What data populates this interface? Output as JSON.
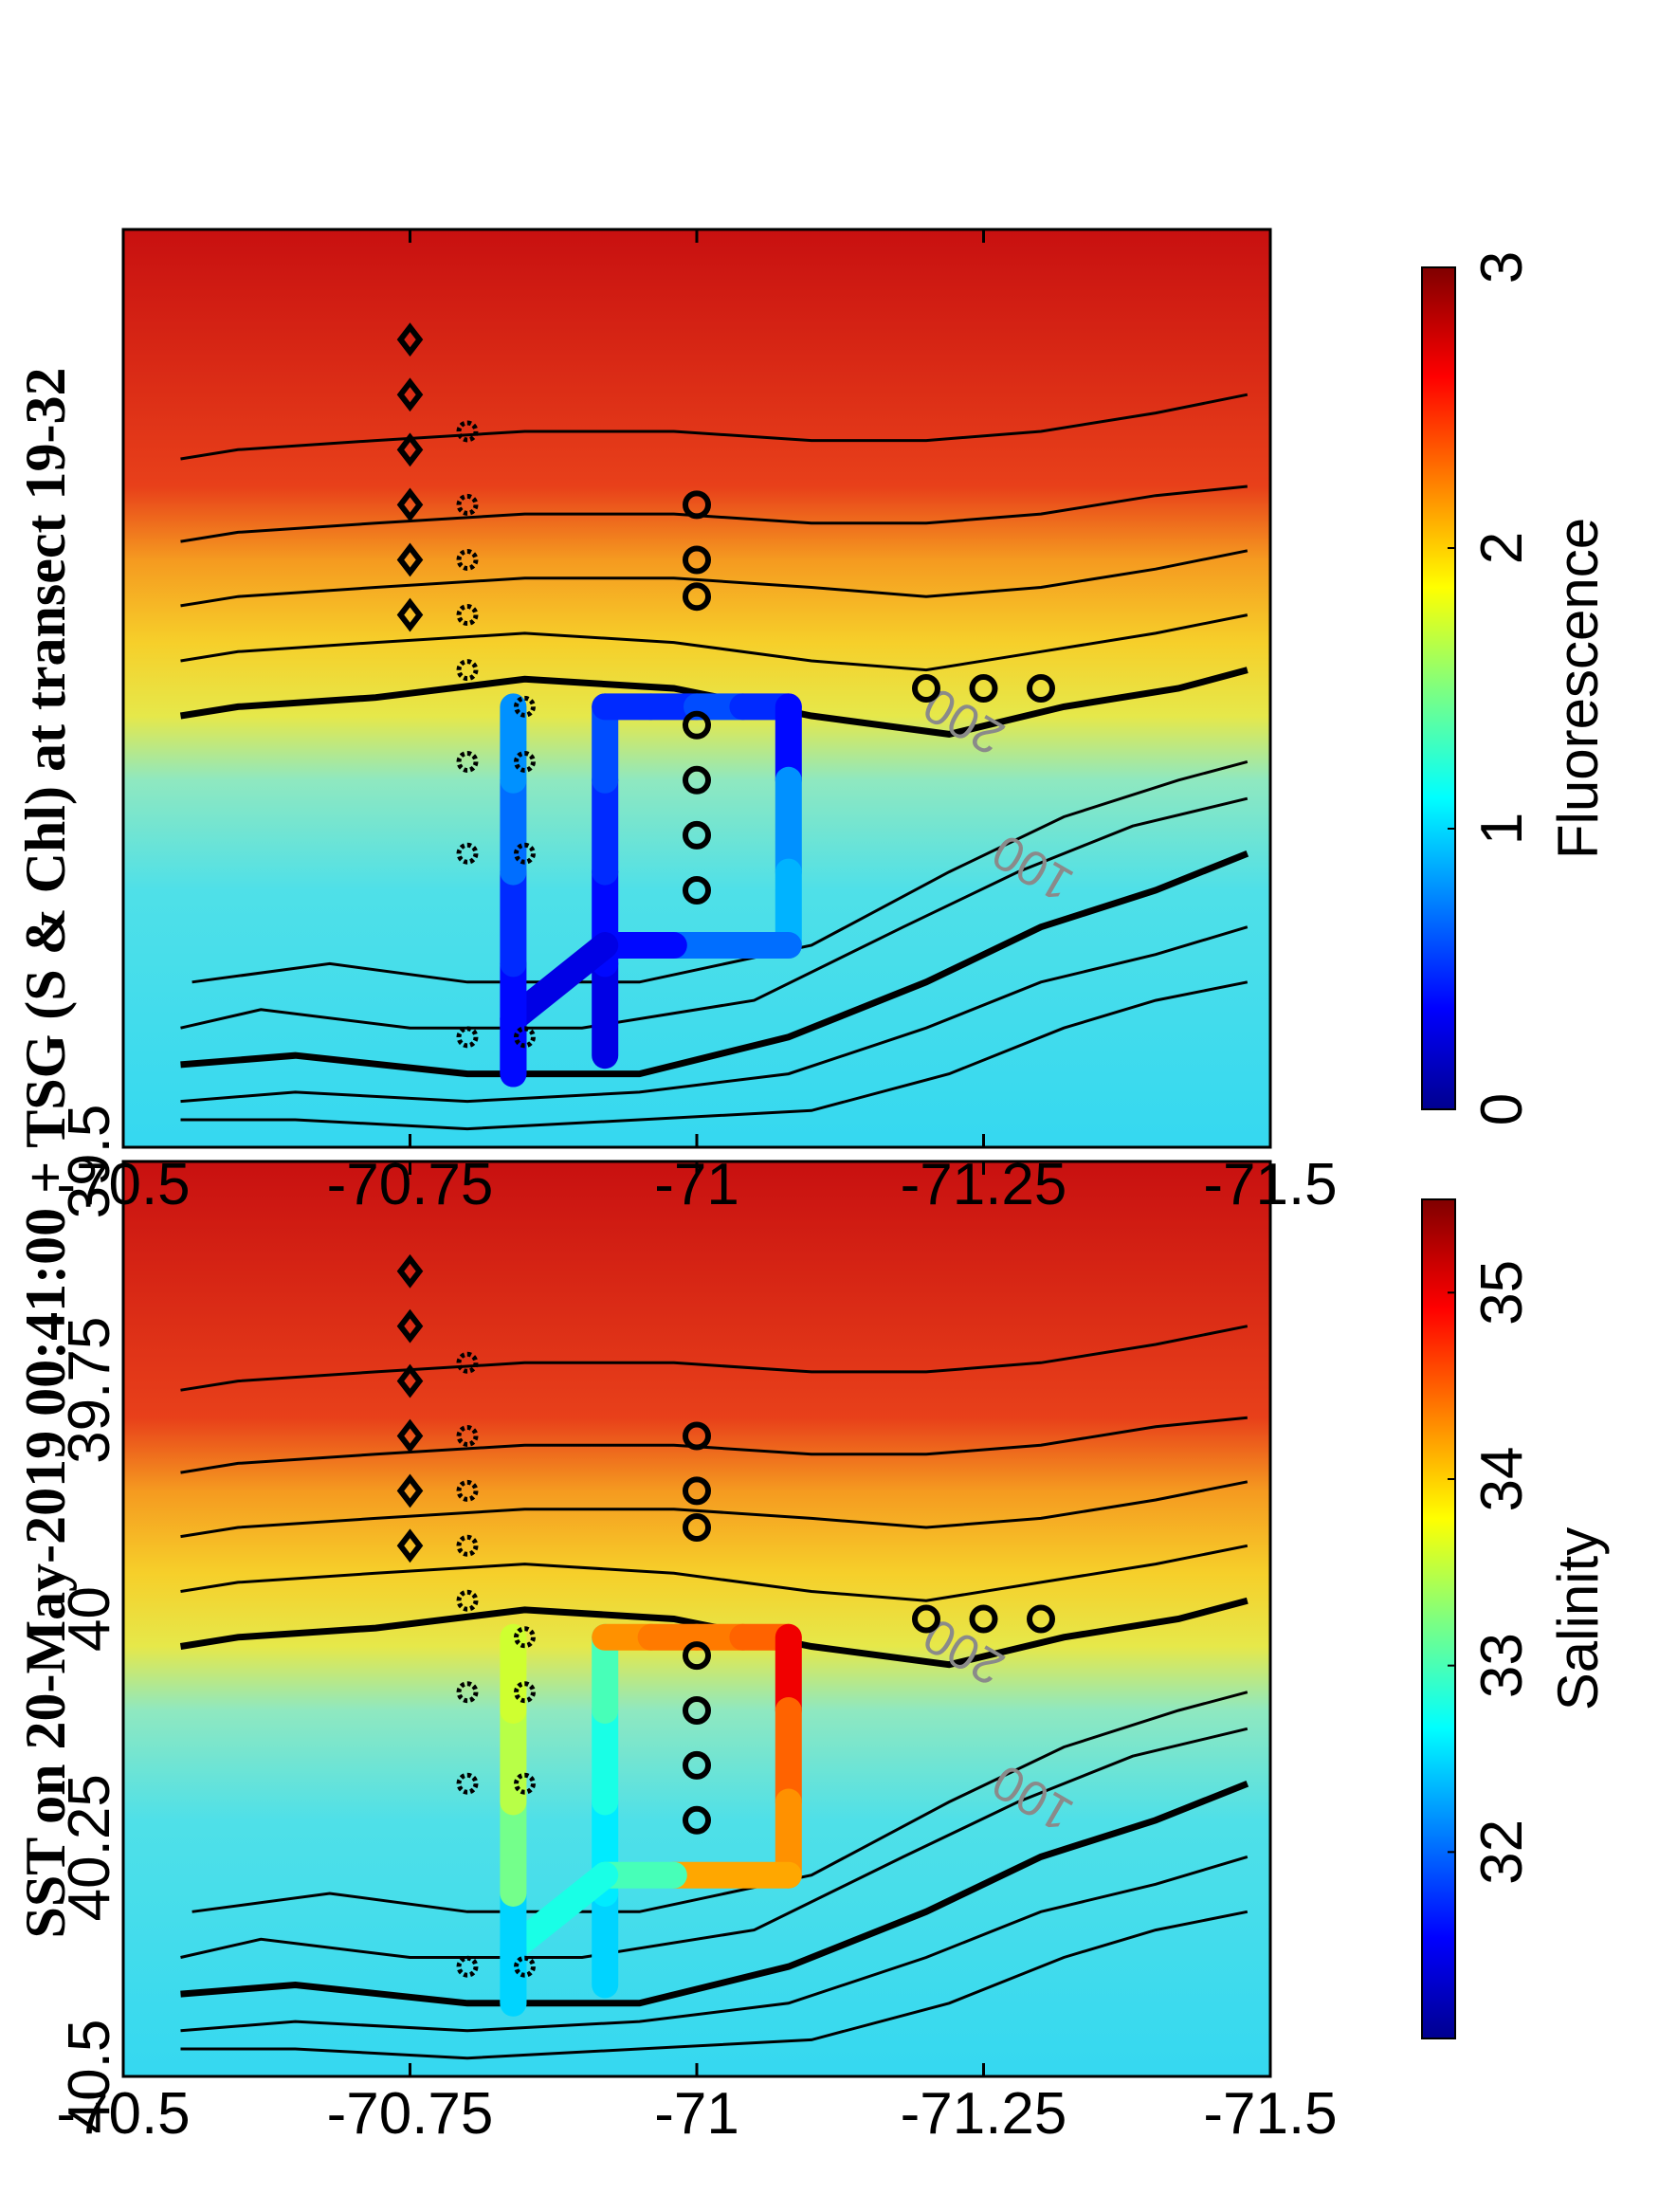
{
  "chart_data": {
    "type": "heatmap",
    "title": "SST on 20-May-2019 00:41:00 + TSG (S & Chl) at transect 19-32",
    "shared_ylim": [
      39.5,
      40.5
    ],
    "yticks": [
      "40.5",
      "40.25",
      "40",
      "39.75",
      "39.5"
    ],
    "isobath_labels": [
      "100",
      "200"
    ],
    "isobaths": [
      {
        "bold": false,
        "points": [
          [
            -71.48,
            40.08
          ],
          [
            -71.42,
            40.1
          ],
          [
            -71.32,
            40.14
          ],
          [
            -71.22,
            40.2
          ],
          [
            -71.1,
            40.28
          ],
          [
            -70.95,
            40.32
          ],
          [
            -70.8,
            40.32
          ],
          [
            -70.68,
            40.3
          ],
          [
            -70.56,
            40.32
          ]
        ]
      },
      {
        "bold": false,
        "points": [
          [
            -71.48,
            40.12
          ],
          [
            -71.38,
            40.15
          ],
          [
            -71.28,
            40.2
          ],
          [
            -71.18,
            40.26
          ],
          [
            -71.05,
            40.34
          ],
          [
            -70.9,
            40.37
          ],
          [
            -70.75,
            40.37
          ],
          [
            -70.62,
            40.35
          ],
          [
            -70.55,
            40.37
          ]
        ]
      },
      {
        "bold": true,
        "points": [
          [
            -71.48,
            40.18
          ],
          [
            -71.4,
            40.22
          ],
          [
            -71.3,
            40.26
          ],
          [
            -71.2,
            40.32
          ],
          [
            -71.08,
            40.38
          ],
          [
            -70.95,
            40.42
          ],
          [
            -70.8,
            40.42
          ],
          [
            -70.65,
            40.4
          ],
          [
            -70.55,
            40.41
          ]
        ]
      },
      {
        "bold": false,
        "points": [
          [
            -71.48,
            40.26
          ],
          [
            -71.4,
            40.29
          ],
          [
            -71.3,
            40.32
          ],
          [
            -71.2,
            40.37
          ],
          [
            -71.08,
            40.42
          ],
          [
            -70.95,
            40.44
          ],
          [
            -70.8,
            40.45
          ],
          [
            -70.65,
            40.44
          ],
          [
            -70.55,
            40.45
          ]
        ]
      },
      {
        "bold": false,
        "points": [
          [
            -71.48,
            40.32
          ],
          [
            -71.4,
            40.34
          ],
          [
            -71.32,
            40.37
          ],
          [
            -71.22,
            40.42
          ],
          [
            -71.1,
            40.46
          ],
          [
            -70.95,
            40.47
          ],
          [
            -70.8,
            40.48
          ],
          [
            -70.65,
            40.47
          ],
          [
            -70.55,
            40.47
          ]
        ]
      },
      {
        "bold": true,
        "points": [
          [
            -71.48,
            39.98
          ],
          [
            -71.42,
            40.0
          ],
          [
            -71.32,
            40.02
          ],
          [
            -71.22,
            40.05
          ],
          [
            -71.1,
            40.03
          ],
          [
            -70.98,
            40.0
          ],
          [
            -70.85,
            39.99
          ],
          [
            -70.72,
            40.01
          ],
          [
            -70.6,
            40.02
          ],
          [
            -70.55,
            40.03
          ]
        ]
      },
      {
        "bold": false,
        "points": [
          [
            -71.48,
            39.92
          ],
          [
            -71.4,
            39.94
          ],
          [
            -71.3,
            39.96
          ],
          [
            -71.2,
            39.98
          ],
          [
            -71.1,
            39.97
          ],
          [
            -70.98,
            39.95
          ],
          [
            -70.85,
            39.94
          ],
          [
            -70.72,
            39.95
          ],
          [
            -70.6,
            39.96
          ],
          [
            -70.55,
            39.97
          ]
        ]
      },
      {
        "bold": false,
        "points": [
          [
            -71.48,
            39.85
          ],
          [
            -71.4,
            39.87
          ],
          [
            -71.3,
            39.89
          ],
          [
            -71.2,
            39.9
          ],
          [
            -71.1,
            39.89
          ],
          [
            -70.98,
            39.88
          ],
          [
            -70.85,
            39.88
          ],
          [
            -70.72,
            39.89
          ],
          [
            -70.6,
            39.9
          ],
          [
            -70.55,
            39.91
          ]
        ]
      },
      {
        "bold": false,
        "points": [
          [
            -71.48,
            39.78
          ],
          [
            -71.4,
            39.79
          ],
          [
            -71.3,
            39.81
          ],
          [
            -71.2,
            39.82
          ],
          [
            -71.1,
            39.82
          ],
          [
            -70.98,
            39.81
          ],
          [
            -70.85,
            39.81
          ],
          [
            -70.72,
            39.82
          ],
          [
            -70.6,
            39.83
          ],
          [
            -70.55,
            39.84
          ]
        ]
      },
      {
        "bold": false,
        "points": [
          [
            -71.48,
            39.68
          ],
          [
            -71.4,
            39.7
          ],
          [
            -71.3,
            39.72
          ],
          [
            -71.2,
            39.73
          ],
          [
            -71.1,
            39.73
          ],
          [
            -70.98,
            39.72
          ],
          [
            -70.85,
            39.72
          ],
          [
            -70.72,
            39.73
          ],
          [
            -70.6,
            39.74
          ],
          [
            -70.55,
            39.75
          ]
        ]
      }
    ],
    "stations": {
      "stars": [
        [
          -70.85,
          40.38
        ],
        [
          -70.85,
          40.18
        ],
        [
          -70.85,
          40.08
        ],
        [
          -70.85,
          40.02
        ],
        [
          -70.8,
          40.38
        ],
        [
          -70.8,
          40.18
        ],
        [
          -70.8,
          40.08
        ],
        [
          -70.8,
          39.98
        ],
        [
          -70.8,
          39.92
        ],
        [
          -70.8,
          39.86
        ],
        [
          -70.8,
          39.8
        ],
        [
          -70.8,
          39.72
        ]
      ],
      "circles": [
        [
          -71.0,
          40.22
        ],
        [
          -71.0,
          40.16
        ],
        [
          -71.0,
          40.1
        ],
        [
          -71.0,
          40.04
        ],
        [
          -71.0,
          39.9
        ],
        [
          -71.0,
          39.86
        ],
        [
          -71.0,
          39.8
        ],
        [
          -71.2,
          40.0
        ],
        [
          -71.25,
          40.0
        ],
        [
          -71.3,
          40.0
        ]
      ],
      "diamonds": [
        [
          -70.75,
          39.92
        ],
        [
          -70.75,
          39.86
        ],
        [
          -70.75,
          39.8
        ],
        [
          -70.75,
          39.74
        ],
        [
          -70.75,
          39.68
        ],
        [
          -70.75,
          39.62
        ]
      ]
    },
    "track": [
      {
        "lon": -70.92,
        "lat": 40.4
      },
      {
        "lon": -70.92,
        "lat": 40.3
      },
      {
        "lon": -70.92,
        "lat": 40.2
      },
      {
        "lon": -70.92,
        "lat": 40.1
      },
      {
        "lon": -70.92,
        "lat": 40.02
      },
      {
        "lon": -70.96,
        "lat": 40.02
      },
      {
        "lon": -71.0,
        "lat": 40.02
      },
      {
        "lon": -71.04,
        "lat": 40.02
      },
      {
        "lon": -71.08,
        "lat": 40.02
      },
      {
        "lon": -71.08,
        "lat": 40.1
      },
      {
        "lon": -71.08,
        "lat": 40.2
      },
      {
        "lon": -71.08,
        "lat": 40.28
      },
      {
        "lon": -70.98,
        "lat": 40.28
      },
      {
        "lon": -70.92,
        "lat": 40.28
      },
      {
        "lon": -70.84,
        "lat": 40.36
      },
      {
        "lon": -70.84,
        "lat": 40.42
      },
      {
        "lon": -70.84,
        "lat": 40.3
      },
      {
        "lon": -70.84,
        "lat": 40.2
      },
      {
        "lon": -70.84,
        "lat": 40.1
      },
      {
        "lon": -70.84,
        "lat": 40.02
      }
    ],
    "panels": [
      {
        "name": "Salinity",
        "xlim": [
          -71.5,
          -70.5
        ],
        "xticks": [
          "-71.5",
          "-71.25",
          "-71",
          "-70.75",
          "-70.5"
        ],
        "colorbar_label": "Salinity",
        "colorbar_ticks": [
          "32",
          "33",
          "34",
          "35"
        ],
        "colorbar_range": [
          31.0,
          35.5
        ],
        "track_values": [
          32.5,
          32.6,
          32.8,
          33.0,
          34.3,
          34.4,
          34.4,
          34.5,
          35.0,
          34.5,
          34.3,
          34.2,
          33.0,
          32.8,
          32.6,
          32.5,
          33.2,
          33.5,
          33.6,
          34.0
        ]
      },
      {
        "name": "Fluorescence",
        "xlim": [
          -71.5,
          -70.5
        ],
        "xticks": [
          "-71.5",
          "-71.25",
          "-71",
          "-70.75",
          "-70.5"
        ],
        "colorbar_label": "Fluorescence",
        "colorbar_ticks": [
          "0",
          "1",
          "2",
          "3"
        ],
        "colorbar_range": [
          0,
          3
        ],
        "track_values": [
          0.3,
          0.4,
          0.5,
          0.6,
          0.5,
          0.5,
          0.6,
          0.5,
          0.4,
          0.8,
          0.9,
          0.7,
          0.4,
          0.3,
          0.3,
          0.4,
          0.5,
          0.7,
          0.8,
          0.6
        ]
      }
    ]
  }
}
